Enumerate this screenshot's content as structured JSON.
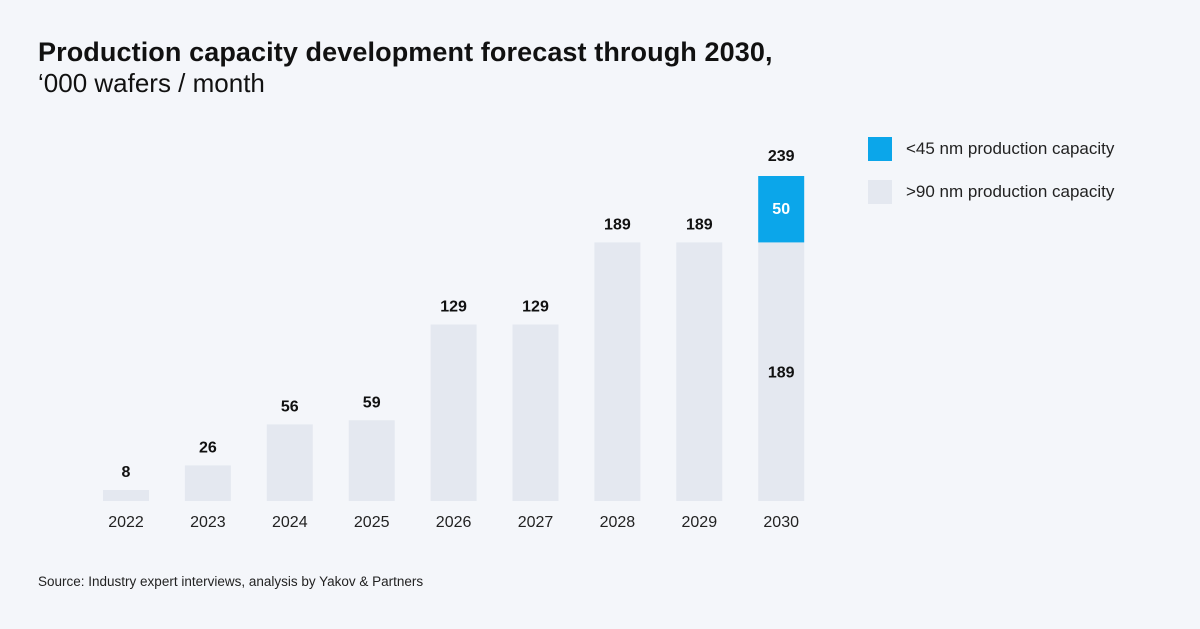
{
  "title": "Production capacity development forecast through 2030,",
  "subtitle": "‘000 wafers / month",
  "source": "Source: Industry expert interviews, analysis by Yakov & Partners",
  "colors": {
    "gt90": "#e4e8f0",
    "lt45": "#0ba6ea",
    "background": "#f4f6fa"
  },
  "chart_data": {
    "type": "bar",
    "stacked": true,
    "categories": [
      "2022",
      "2023",
      "2024",
      "2025",
      "2026",
      "2027",
      "2028",
      "2029",
      "2030"
    ],
    "series": [
      {
        "name": ">90 nm production capacity",
        "values": [
          8,
          26,
          56,
          59,
          129,
          129,
          189,
          189,
          189
        ],
        "color": "#e4e8f0"
      },
      {
        "name": "<45 nm production capacity",
        "values": [
          0,
          0,
          0,
          0,
          0,
          0,
          0,
          0,
          50
        ],
        "color": "#0ba6ea"
      }
    ],
    "totals": [
      "8",
      "26",
      "56",
      "59",
      "129",
      "129",
      "189",
      "189",
      "239"
    ],
    "segment_labels": [
      {
        "category": "2030",
        "series": ">90 nm production capacity",
        "text": "189"
      },
      {
        "category": "2030",
        "series": "<45 nm production capacity",
        "text": "50"
      }
    ],
    "ylim": [
      0,
      239
    ],
    "grid": false,
    "legend_position": "top-right"
  },
  "legend": [
    {
      "label": "<45 nm production capacity",
      "color": "#0ba6ea"
    },
    {
      "label": ">90 nm production capacity",
      "color": "#e4e8f0"
    }
  ]
}
